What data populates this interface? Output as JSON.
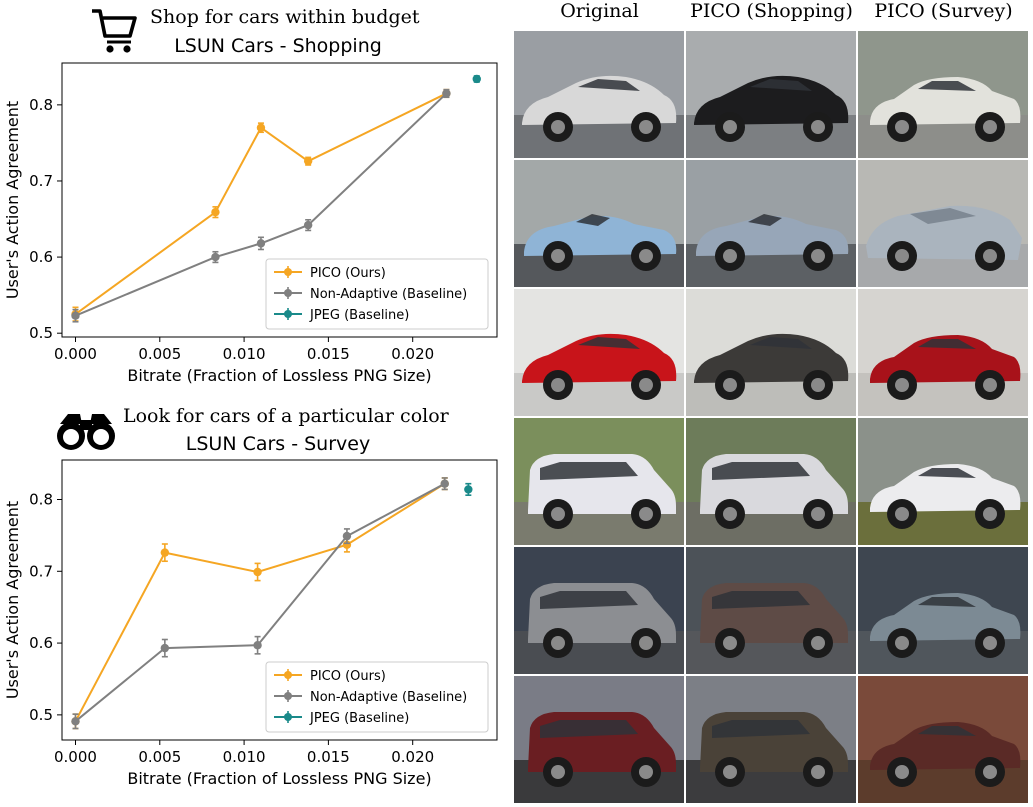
{
  "panels": [
    {
      "task_caption": "Shop for cars within budget",
      "task_icon": "shopping-cart-icon",
      "chart_data": {
        "type": "line",
        "title": "LSUN Cars - Shopping",
        "xlabel": "Bitrate (Fraction of Lossless PNG Size)",
        "ylabel": "User's Action Agreement",
        "xlim": [
          -0.0008,
          0.025
        ],
        "ylim": [
          0.495,
          0.855
        ],
        "xticks": [
          "0.000",
          "0.005",
          "0.010",
          "0.015",
          "0.020"
        ],
        "yticks": [
          "0.5",
          "0.6",
          "0.7",
          "0.8"
        ],
        "legend_position": "lower-right",
        "series": [
          {
            "name": "PICO (Ours)",
            "color": "#f5a623",
            "points": [
              [
                0.0,
                0.525,
                0.009
              ],
              [
                0.0083,
                0.659,
                0.007
              ],
              [
                0.011,
                0.77,
                0.006
              ],
              [
                0.0138,
                0.726,
                0.005
              ],
              [
                0.022,
                0.815,
                0.005
              ]
            ]
          },
          {
            "name": "Non-Adaptive (Baseline)",
            "color": "#808080",
            "points": [
              [
                0.0,
                0.523,
                0.008
              ],
              [
                0.0083,
                0.6,
                0.007
              ],
              [
                0.011,
                0.618,
                0.008
              ],
              [
                0.0138,
                0.642,
                0.007
              ],
              [
                0.022,
                0.815,
                0.005
              ]
            ]
          },
          {
            "name": "JPEG (Baseline)",
            "color": "#1a8a8a",
            "points": [
              [
                0.0238,
                0.834,
                0.004
              ]
            ]
          }
        ]
      }
    },
    {
      "task_caption": "Look for cars of a particular color",
      "task_icon": "binoculars-icon",
      "chart_data": {
        "type": "line",
        "title": "LSUN Cars - Survey",
        "xlabel": "Bitrate (Fraction of Lossless PNG Size)",
        "ylabel": "User's Action Agreement",
        "xlim": [
          -0.0008,
          0.025
        ],
        "ylim": [
          0.465,
          0.855
        ],
        "xticks": [
          "0.000",
          "0.005",
          "0.010",
          "0.015",
          "0.020"
        ],
        "yticks": [
          "0.5",
          "0.6",
          "0.7",
          "0.8"
        ],
        "legend_position": "lower-right",
        "series": [
          {
            "name": "PICO (Ours)",
            "color": "#f5a623",
            "points": [
              [
                0.0,
                0.491,
                0.01
              ],
              [
                0.0053,
                0.726,
                0.012
              ],
              [
                0.0108,
                0.699,
                0.012
              ],
              [
                0.0161,
                0.737,
                0.01
              ],
              [
                0.0219,
                0.822,
                0.008
              ]
            ]
          },
          {
            "name": "Non-Adaptive (Baseline)",
            "color": "#808080",
            "points": [
              [
                0.0,
                0.491,
                0.01
              ],
              [
                0.0053,
                0.593,
                0.012
              ],
              [
                0.0108,
                0.597,
                0.012
              ],
              [
                0.0161,
                0.749,
                0.01
              ],
              [
                0.0219,
                0.822,
                0.008
              ]
            ]
          },
          {
            "name": "JPEG (Baseline)",
            "color": "#1a8a8a",
            "points": [
              [
                0.0233,
                0.814,
                0.008
              ]
            ]
          }
        ]
      }
    }
  ],
  "image_grid": {
    "columns": [
      "Original",
      "PICO (Shopping)",
      "PICO (Survey)"
    ],
    "rows": [
      [
        {
          "car": "coupe",
          "body": "#d8d8d8",
          "bg": "#9a9ea3",
          "ground": "#6f7276"
        },
        {
          "car": "coupe",
          "body": "#1c1c1e",
          "bg": "#a9acae",
          "ground": "#7c7f82"
        },
        {
          "car": "sedan",
          "body": "#e2e2dc",
          "bg": "#8f968c",
          "ground": "#8d8e8a"
        }
      ],
      [
        {
          "car": "roadster",
          "body": "#8fb4d6",
          "bg": "#a3a8a8",
          "ground": "#55585c"
        },
        {
          "car": "roadster",
          "body": "#97a6b8",
          "bg": "#9aa0a4",
          "ground": "#5c6064"
        },
        {
          "car": "wreck",
          "body": "#aab4be",
          "bg": "#b8b8b4",
          "ground": "#a7a9ab"
        }
      ],
      [
        {
          "car": "coupe",
          "body": "#c8141a",
          "bg": "#e4e4e2",
          "ground": "#c9c9c7"
        },
        {
          "car": "coupe",
          "body": "#3c3a38",
          "bg": "#dcdcd8",
          "ground": "#bdbdb9"
        },
        {
          "car": "sedan",
          "body": "#a8121a",
          "bg": "#d6d4d0",
          "ground": "#c4c2be"
        }
      ],
      [
        {
          "car": "van",
          "body": "#e6e6ec",
          "bg": "#7b8f5c",
          "ground": "#7a7b6e"
        },
        {
          "car": "van",
          "body": "#d9d9dd",
          "bg": "#6d7c5a",
          "ground": "#6d6e64"
        },
        {
          "car": "sedan",
          "body": "#ececee",
          "bg": "#8b918a",
          "ground": "#6b6f3c"
        }
      ],
      [
        {
          "car": "van",
          "body": "#8c8e92",
          "bg": "#3b4350",
          "ground": "#4a4d52"
        },
        {
          "car": "van",
          "body": "#5e4b46",
          "bg": "#4c5258",
          "ground": "#55575b"
        },
        {
          "car": "sedan",
          "body": "#7c8a94",
          "bg": "#3e4650",
          "ground": "#50565c"
        }
      ],
      [
        {
          "car": "minivan",
          "body": "#6a1e22",
          "bg": "#7a7c86",
          "ground": "#3a3a3c"
        },
        {
          "car": "minivan",
          "body": "#4a4238",
          "bg": "#7c7f86",
          "ground": "#3c3c3e"
        },
        {
          "car": "sedan",
          "body": "#5a2a26",
          "bg": "#7a4a3a",
          "ground": "#5c3c2c"
        }
      ]
    ]
  }
}
